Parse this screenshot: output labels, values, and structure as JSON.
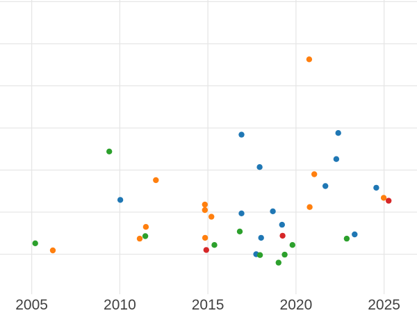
{
  "figure": {
    "background_color": "#ffffff",
    "grid_color": "#e6e6e6",
    "tick_label_color": "#404040"
  },
  "x_axis": {
    "tick_labels": [
      "2005",
      "2010",
      "2015",
      "2020",
      "2025"
    ],
    "tick_years": [
      2005,
      2010,
      2015,
      2020,
      2025
    ]
  },
  "chart_data": {
    "type": "scatter",
    "title": "",
    "xlabel": "",
    "ylabel": "",
    "grid": true,
    "legend": false,
    "x_range": [
      2003.2,
      2026.87
    ],
    "y_range": [
      0,
      7.04
    ],
    "x_gridlines": [
      2005,
      2010,
      2015,
      2020,
      2025
    ],
    "y_gridlines": [
      1,
      2,
      3,
      4,
      5,
      6,
      7
    ],
    "marker_radius_px": 4.2,
    "series": [
      {
        "name": "blue",
        "color": "#1f77b4",
        "points": [
          [
            2010.03,
            2.29
          ],
          [
            2016.91,
            3.84
          ],
          [
            2016.91,
            1.97
          ],
          [
            2017.94,
            3.07
          ],
          [
            2017.74,
            1.0
          ],
          [
            2018.02,
            1.39
          ],
          [
            2018.69,
            2.02
          ],
          [
            2019.21,
            1.7
          ],
          [
            2021.67,
            2.62
          ],
          [
            2022.29,
            3.26
          ],
          [
            2022.4,
            3.88
          ],
          [
            2023.33,
            1.47
          ],
          [
            2024.56,
            2.58
          ]
        ]
      },
      {
        "name": "orange",
        "color": "#ff7f0e",
        "points": [
          [
            2006.2,
            1.09
          ],
          [
            2011.13,
            1.37
          ],
          [
            2011.48,
            1.65
          ],
          [
            2012.05,
            2.76
          ],
          [
            2014.83,
            2.18
          ],
          [
            2014.83,
            2.05
          ],
          [
            2015.2,
            1.89
          ],
          [
            2014.84,
            1.39
          ],
          [
            2020.75,
            5.63
          ],
          [
            2021.04,
            2.9
          ],
          [
            2020.78,
            2.12
          ],
          [
            2024.98,
            2.34
          ]
        ]
      },
      {
        "name": "green",
        "color": "#2ca02c",
        "points": [
          [
            2005.2,
            1.26
          ],
          [
            2009.4,
            3.44
          ],
          [
            2011.45,
            1.43
          ],
          [
            2015.37,
            1.22
          ],
          [
            2016.81,
            1.54
          ],
          [
            2017.96,
            0.98
          ],
          [
            2019.01,
            0.8
          ],
          [
            2019.36,
            0.99
          ],
          [
            2019.8,
            1.22
          ],
          [
            2022.88,
            1.37
          ]
        ]
      },
      {
        "name": "red",
        "color": "#d62728",
        "points": [
          [
            2014.91,
            1.1
          ],
          [
            2019.24,
            1.44
          ],
          [
            2025.26,
            2.27
          ]
        ]
      }
    ]
  }
}
